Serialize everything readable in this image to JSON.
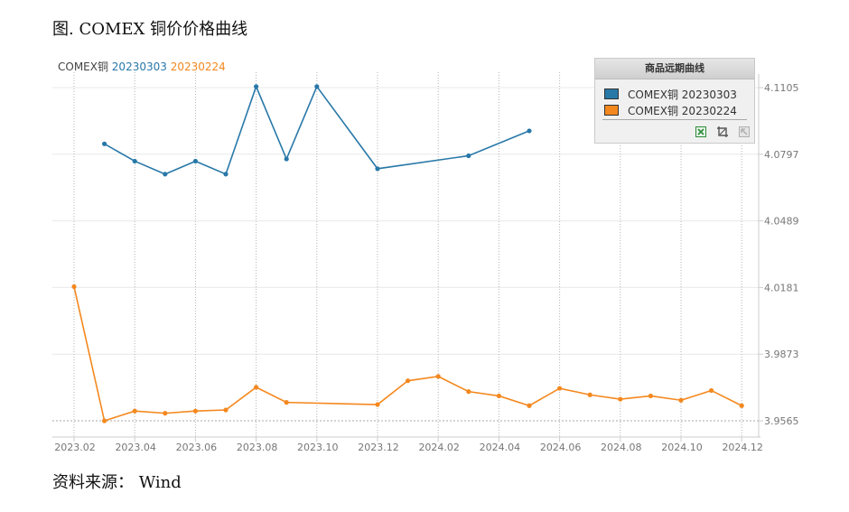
{
  "figure_title": "图. COMEX 铜价价格曲线",
  "source_note": "资料来源： Wind",
  "legend_box": {
    "title": "商品远期曲线",
    "items": [
      {
        "label": "COMEX铜 20230303",
        "color": "#2878a8"
      },
      {
        "label": "COMEX铜 20230224",
        "color": "#f4881e"
      }
    ],
    "tools": [
      "excel-export-icon",
      "crop-icon",
      "reset-icon"
    ]
  },
  "chart_data": {
    "type": "line",
    "title_parts": [
      {
        "text": "COMEX铜",
        "color": "#444444"
      },
      {
        "text": "20230303",
        "color": "#2878a8"
      },
      {
        "text": "20230224",
        "color": "#f4881e"
      }
    ],
    "x_ticks": [
      "2023.02",
      "2023.04",
      "2023.06",
      "2023.08",
      "2023.10",
      "2023.12",
      "2024.02",
      "2024.04",
      "2024.06",
      "2024.08",
      "2024.10",
      "2024.12"
    ],
    "y_ticks": [
      3.9565,
      3.9873,
      4.0181,
      4.0489,
      4.0797,
      4.1105
    ],
    "ylim": [
      3.9565,
      4.1105
    ],
    "grid": true,
    "series": [
      {
        "name": "20230303",
        "color": "#2878a8",
        "points": [
          [
            "2023-03",
            4.0845
          ],
          [
            "2023-04",
            4.0765
          ],
          [
            "2023-05",
            4.0705
          ],
          [
            "2023-06",
            4.0765
          ],
          [
            "2023-07",
            4.0705
          ],
          [
            "2023-08",
            4.111
          ],
          [
            "2023-09",
            4.0775
          ],
          [
            "2023-10",
            4.111
          ],
          [
            "2023-12",
            4.073
          ],
          [
            "2024-03",
            4.079
          ],
          [
            "2024-05",
            4.0905
          ]
        ]
      },
      {
        "name": "20230224",
        "color": "#f4881e",
        "points": [
          [
            "2023-02",
            4.0185
          ],
          [
            "2023-03",
            3.9565
          ],
          [
            "2023-04",
            3.961
          ],
          [
            "2023-05",
            3.96
          ],
          [
            "2023-06",
            3.961
          ],
          [
            "2023-07",
            3.9615
          ],
          [
            "2023-08",
            3.972
          ],
          [
            "2023-09",
            3.965
          ],
          [
            "2023-12",
            3.964
          ],
          [
            "2024-01",
            3.975
          ],
          [
            "2024-02",
            3.977
          ],
          [
            "2024-03",
            3.97
          ],
          [
            "2024-04",
            3.968
          ],
          [
            "2024-05",
            3.9635
          ],
          [
            "2024-06",
            3.9715
          ],
          [
            "2024-07",
            3.9685
          ],
          [
            "2024-08",
            3.9665
          ],
          [
            "2024-09",
            3.968
          ],
          [
            "2024-10",
            3.966
          ],
          [
            "2024-11",
            3.9705
          ],
          [
            "2024-12",
            3.9635
          ]
        ]
      }
    ]
  }
}
